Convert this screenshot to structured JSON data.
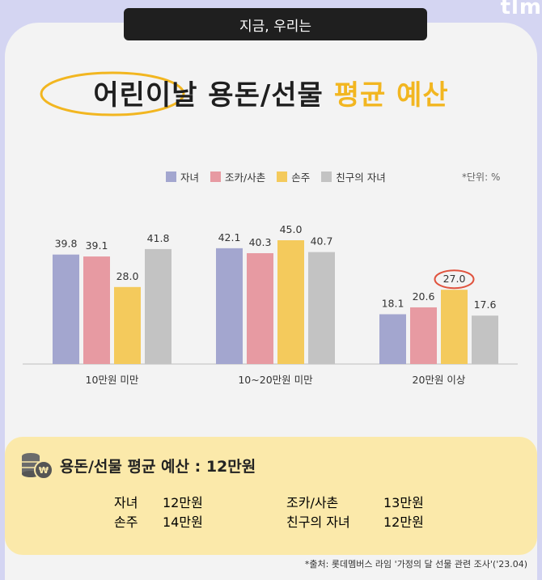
{
  "brand": "tlm",
  "header": {
    "pill": "지금, 우리는",
    "title_part1": "어린이날 용돈/선물 ",
    "title_part2": "평균 예산"
  },
  "unit_note": "*단위: %",
  "colors": {
    "자녀": "#a3a6cf",
    "조카/사촌": "#e79aa2",
    "손주": "#f4ca5c",
    "친구의 자녀": "#c3c3c3",
    "highlight_circle": "#e0533e",
    "summary_bg": "#fbe9aa"
  },
  "chart_data": {
    "type": "bar",
    "categories": [
      "10만원 미만",
      "10~20만원 미만",
      "20만원 이상"
    ],
    "series": [
      {
        "name": "자녀",
        "values": [
          39.8,
          42.1,
          18.1
        ]
      },
      {
        "name": "조카/사촌",
        "values": [
          39.1,
          40.3,
          20.6
        ]
      },
      {
        "name": "손주",
        "values": [
          28.0,
          45.0,
          27.0
        ]
      },
      {
        "name": "친구의 자녀",
        "values": [
          41.8,
          40.7,
          17.6
        ]
      }
    ],
    "value_labels": [
      [
        "39.8",
        "39.1",
        "28.0",
        "41.8"
      ],
      [
        "42.1",
        "40.3",
        "45.0",
        "40.7"
      ],
      [
        "18.1",
        "20.6",
        "27.0",
        "17.6"
      ]
    ],
    "highlight": {
      "category_index": 2,
      "series_index": 2
    },
    "ylim": [
      0,
      50
    ],
    "grid": false,
    "legend_position": "top"
  },
  "summary": {
    "title": "용돈/선물 평균 예산 : 12만원",
    "items": [
      {
        "label": "자녀",
        "value": "12만원"
      },
      {
        "label": "조카/사촌",
        "value": "13만원"
      },
      {
        "label": "손주",
        "value": "14만원"
      },
      {
        "label": "친구의 자녀",
        "value": "12만원"
      }
    ]
  },
  "source": "*출처: 롯데멤버스 라임 '가정의 달 선물 관련 조사'('23.04)"
}
